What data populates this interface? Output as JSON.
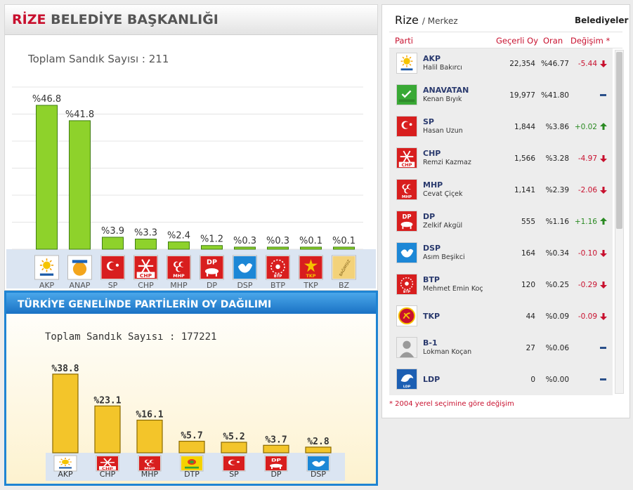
{
  "rize_panel": {
    "title_city": "RİZE",
    "title_rest": "BELEDİYE BAŞKANLIĞI",
    "total_ballots": "Toplam Sandık Sayısı : 211"
  },
  "turkey_panel": {
    "title": "TÜRKİYE GENELİNDE PARTİLERİN OY DAĞILIMI",
    "total_ballots": "Toplam Sandık Sayısı : 177221"
  },
  "chart_data": [
    {
      "type": "bar",
      "categories": [
        "AKP",
        "ANAP",
        "SP",
        "CHP",
        "MHP",
        "DP",
        "DSP",
        "BTP",
        "TKP",
        "BZ"
      ],
      "values": [
        46.8,
        41.8,
        3.9,
        3.3,
        2.4,
        1.2,
        0.3,
        0.3,
        0.1,
        0.1
      ],
      "data_labels": [
        "%46.8",
        "%41.8",
        "%3.9",
        "%3.3",
        "%2.4",
        "%1.2",
        "%0.3",
        "%0.3",
        "%0.1",
        "%0.1"
      ],
      "title": "RİZE BELEDİYE BAŞKANLIĞI",
      "ylim": [
        0,
        50
      ],
      "grid": true,
      "bar_color": "#8ed22b"
    },
    {
      "type": "bar",
      "categories": [
        "AKP",
        "CHP",
        "MHP",
        "DTP",
        "SP",
        "DP",
        "DSP"
      ],
      "values": [
        38.8,
        23.1,
        16.1,
        5.7,
        5.2,
        3.7,
        2.8
      ],
      "data_labels": [
        "%38.8",
        "%23.1",
        "%16.1",
        "%5.7",
        "%5.2",
        "%3.7",
        "%2.8"
      ],
      "title": "TÜRKİYE GENELİNDE PARTİLERİN OY DAĞILIMI",
      "ylim": [
        0,
        45
      ],
      "grid": false,
      "bar_color": "#f3c52a"
    }
  ],
  "results": {
    "city": "Rize",
    "district": "/ Merkez",
    "type_label": "Belediyeler",
    "columns": {
      "party": "Parti",
      "votes": "Geçerli Oy",
      "share": "Oran",
      "change": "Değişim *"
    },
    "rows": [
      {
        "party": "AKP",
        "candidate": "Halil Bakırcı",
        "votes": "22,354",
        "share": "%46.77",
        "change": "-5.44",
        "trend": "down",
        "logo": "akp-logo"
      },
      {
        "party": "ANAVATAN",
        "candidate": "Kenan Bıyık",
        "votes": "19,977",
        "share": "%41.80",
        "change": "",
        "trend": "none",
        "logo": "anavatan-logo"
      },
      {
        "party": "SP",
        "candidate": "Hasan Uzun",
        "votes": "1,844",
        "share": "%3.86",
        "change": "+0.02",
        "trend": "up",
        "logo": "sp-logo"
      },
      {
        "party": "CHP",
        "candidate": "Remzi Kazmaz",
        "votes": "1,566",
        "share": "%3.28",
        "change": "-4.97",
        "trend": "down",
        "logo": "chp-logo"
      },
      {
        "party": "MHP",
        "candidate": "Cevat Çiçek",
        "votes": "1,141",
        "share": "%2.39",
        "change": "-2.06",
        "trend": "down",
        "logo": "mhp-logo"
      },
      {
        "party": "DP",
        "candidate": "Zelkif Akgül",
        "votes": "555",
        "share": "%1.16",
        "change": "+1.16",
        "trend": "up",
        "logo": "dp-logo"
      },
      {
        "party": "DSP",
        "candidate": "Asım Beşikci",
        "votes": "164",
        "share": "%0.34",
        "change": "-0.10",
        "trend": "down",
        "logo": "dsp-logo"
      },
      {
        "party": "BTP",
        "candidate": "Mehmet Emin Koç",
        "votes": "120",
        "share": "%0.25",
        "change": "-0.29",
        "trend": "down",
        "logo": "btp-logo"
      },
      {
        "party": "TKP",
        "candidate": "",
        "votes": "44",
        "share": "%0.09",
        "change": "-0.09",
        "trend": "down",
        "logo": "tkp-logo"
      },
      {
        "party": "B-1",
        "candidate": "Lokman Koçan",
        "votes": "27",
        "share": "%0.06",
        "change": "",
        "trend": "none",
        "logo": "independent-avatar"
      },
      {
        "party": "LDP",
        "candidate": "",
        "votes": "0",
        "share": "%0.00",
        "change": "",
        "trend": "none",
        "logo": "ldp-logo"
      }
    ],
    "footnote": "* 2004 yerel seçimine göre değişim"
  },
  "colors": {
    "accent_red": "#c8102e",
    "positive_green": "#2a8a22",
    "party_blue": "#2a3a6e",
    "rize_bar": "#8ed22b",
    "turkey_bar": "#f3c52a",
    "turkey_border": "#1f84d3"
  }
}
